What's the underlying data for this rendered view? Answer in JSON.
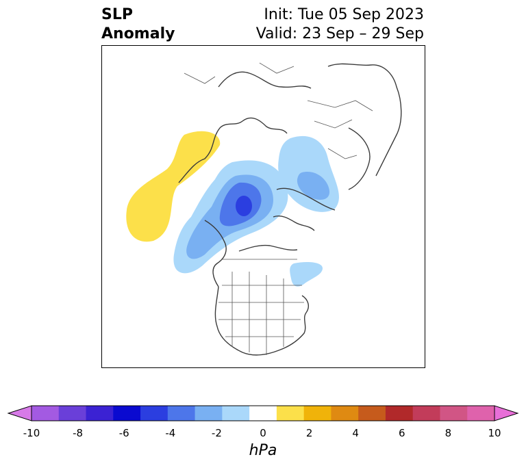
{
  "title": {
    "left_line1": "SLP",
    "left_line2": "Anomaly",
    "right_line1": "Init: Tue 05 Sep 2023",
    "right_line2": "Valid: 23 Sep – 29 Sep"
  },
  "map": {
    "projection": "polar-stereographic",
    "region": "Northern Hemisphere / North America",
    "features": [
      "coastlines",
      "country-borders",
      "state-borders"
    ],
    "anomaly_regions": [
      {
        "name": "positive-anomaly-ne-pacific",
        "value_range_hpa": [
          1,
          2
        ],
        "color": "#fce04a"
      },
      {
        "name": "negative-anomaly-siberia-alaska",
        "value_range_hpa": [
          -6,
          -1
        ],
        "color": "#2b3ee0"
      },
      {
        "name": "negative-anomaly-arctic-scandinavia",
        "value_range_hpa": [
          -3,
          -1
        ],
        "color": "#79b0f2"
      },
      {
        "name": "negative-anomaly-east-canada",
        "value_range_hpa": [
          -2,
          -1
        ],
        "color": "#aad8fa"
      }
    ]
  },
  "colorbar": {
    "unit": "hPa",
    "ticks": [
      "-10",
      "-8",
      "-6",
      "-4",
      "-2",
      "0",
      "2",
      "4",
      "6",
      "8",
      "10"
    ],
    "colors": [
      "#d77ae8",
      "#a35ae2",
      "#6a3fd9",
      "#3b22d3",
      "#0a0ad0",
      "#2b3ee0",
      "#4d76ea",
      "#79b0f2",
      "#aad8fa",
      "#ffffff",
      "#fce04a",
      "#f0b30a",
      "#df8a12",
      "#c65b1c",
      "#b1292a",
      "#c23c5a",
      "#d15585",
      "#df62ac",
      "#e86fd8"
    ],
    "extend": "both"
  }
}
